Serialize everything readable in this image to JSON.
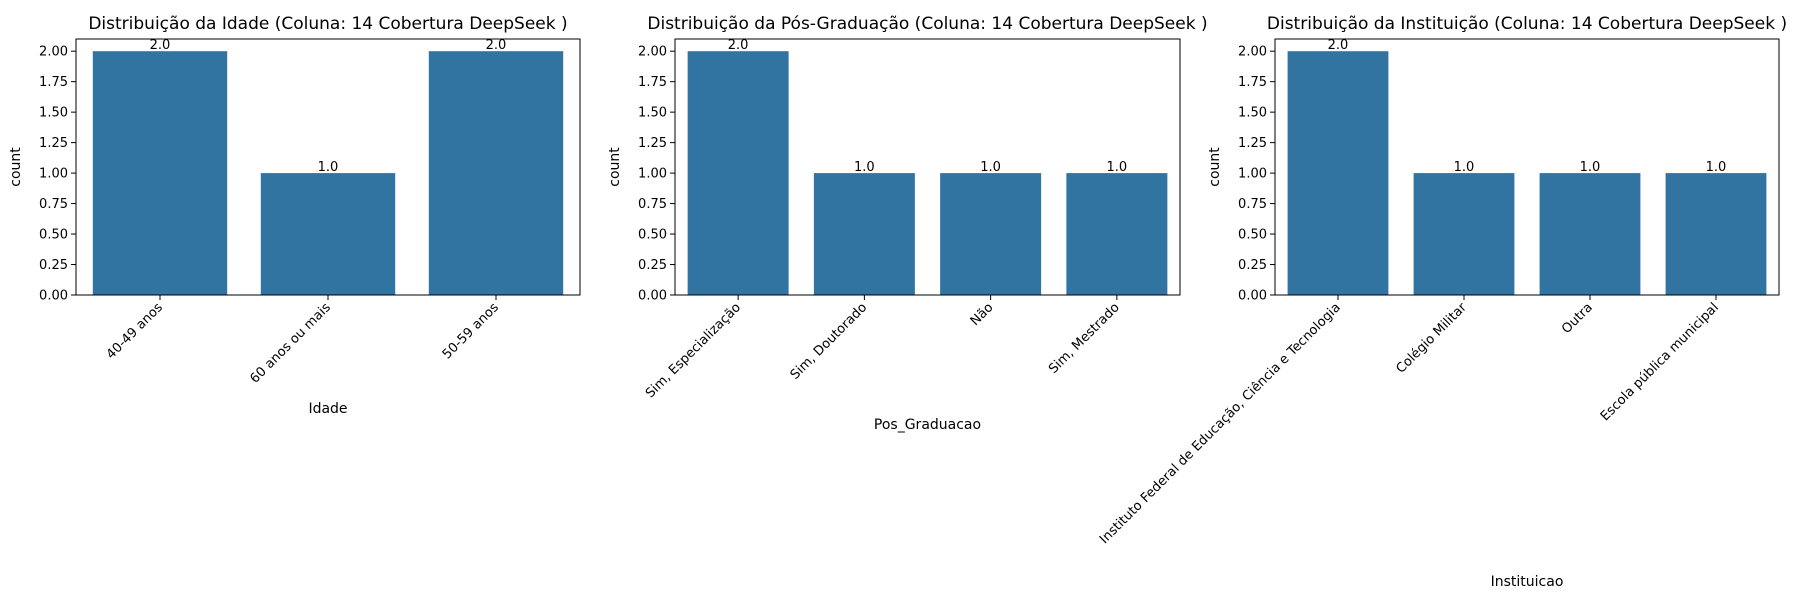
{
  "style": {
    "bar_color": "#3274a1",
    "axis_color": "#000000",
    "background": "#ffffff"
  },
  "chart_data": [
    {
      "type": "bar",
      "title": "Distribuição da Idade (Coluna: 14 Cobertura DeepSeek )",
      "xlabel": "Idade",
      "ylabel": "count",
      "categories": [
        "40-49 anos",
        "60 anos ou mais",
        "50-59 anos"
      ],
      "values": [
        2.0,
        1.0,
        2.0
      ],
      "data_labels": [
        "2.0",
        "1.0",
        "2.0"
      ],
      "ylim": [
        0,
        2.1
      ],
      "yticks": [
        "0.00",
        "0.25",
        "0.50",
        "0.75",
        "1.00",
        "1.25",
        "1.50",
        "1.75",
        "2.00"
      ],
      "grid": false,
      "legend": "none"
    },
    {
      "type": "bar",
      "title": "Distribuição da Pós-Graduação (Coluna: 14 Cobertura DeepSeek )",
      "xlabel": "Pos_Graduacao",
      "ylabel": "count",
      "categories": [
        "Sim, Especialização",
        "Sim, Doutorado",
        "Não",
        "Sim, Mestrado"
      ],
      "values": [
        2.0,
        1.0,
        1.0,
        1.0
      ],
      "data_labels": [
        "2.0",
        "1.0",
        "1.0",
        "1.0"
      ],
      "ylim": [
        0,
        2.1
      ],
      "yticks": [
        "0.00",
        "0.25",
        "0.50",
        "0.75",
        "1.00",
        "1.25",
        "1.50",
        "1.75",
        "2.00"
      ],
      "grid": false,
      "legend": "none"
    },
    {
      "type": "bar",
      "title": "Distribuição da Instituição (Coluna: 14 Cobertura DeepSeek )",
      "xlabel": "Instituicao",
      "ylabel": "count",
      "categories": [
        "Instituto Federal de Educação, Ciência e Tecnologia",
        "Colégio Militar",
        "Outra",
        "Escola pública municipal"
      ],
      "values": [
        2.0,
        1.0,
        1.0,
        1.0
      ],
      "data_labels": [
        "2.0",
        "1.0",
        "1.0",
        "1.0"
      ],
      "ylim": [
        0,
        2.1
      ],
      "yticks": [
        "0.00",
        "0.25",
        "0.50",
        "0.75",
        "1.00",
        "1.25",
        "1.50",
        "1.75",
        "2.00"
      ],
      "grid": false,
      "legend": "none"
    }
  ]
}
